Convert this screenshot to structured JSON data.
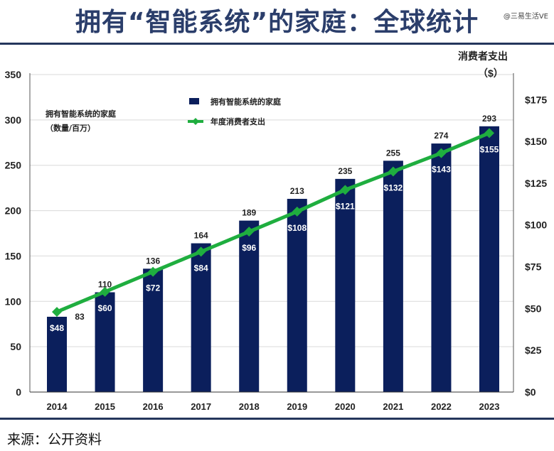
{
  "title": "拥有“智能系统”的家庭：全球统计",
  "watermark": "@三易生活VE",
  "source": "来源：公开资料",
  "colors": {
    "bar": "#0b1f5c",
    "line": "#1fae3f",
    "title": "#2b3e6b",
    "rule": "#24365c"
  },
  "chart_data": {
    "type": "bar",
    "categories": [
      "2014",
      "2015",
      "2016",
      "2017",
      "2018",
      "2019",
      "2020",
      "2021",
      "2022",
      "2023"
    ],
    "series": [
      {
        "name": "拥有智能系统的家庭",
        "axis": "left",
        "type": "bar",
        "values": [
          83,
          110,
          136,
          164,
          189,
          213,
          235,
          255,
          274,
          293
        ],
        "labels": [
          "83",
          "110",
          "136",
          "164",
          "189",
          "213",
          "235",
          "255",
          "274",
          "293"
        ]
      },
      {
        "name": "年度消费者支出",
        "axis": "right",
        "type": "line",
        "values": [
          48,
          60,
          72,
          84,
          96,
          108,
          121,
          132,
          143,
          155
        ],
        "labels": [
          "$48",
          "$60",
          "$72",
          "$84",
          "$96",
          "$108",
          "$121",
          "$132",
          "$143",
          "$155"
        ]
      }
    ],
    "left_axis": {
      "label_line1": "拥有智能系统的家庭",
      "label_line2": "（数量/百万）",
      "ylim": [
        0,
        350
      ],
      "ticks": [
        "0",
        "50",
        "100",
        "150",
        "200",
        "250",
        "300",
        "350"
      ]
    },
    "right_axis": {
      "label_line1": "消费者支出",
      "label_line2": "（$）",
      "ylim": [
        0,
        190
      ],
      "tick_values": [
        0,
        25,
        50,
        75,
        100,
        125,
        150,
        175
      ],
      "ticks": [
        "$0",
        "$25",
        "$50",
        "$75",
        "$100",
        "$125",
        "$150",
        "$175"
      ]
    },
    "legend": {
      "position": "top-center",
      "items": [
        "拥有智能系统的家庭",
        "年度消费者支出"
      ]
    },
    "grid": true
  }
}
